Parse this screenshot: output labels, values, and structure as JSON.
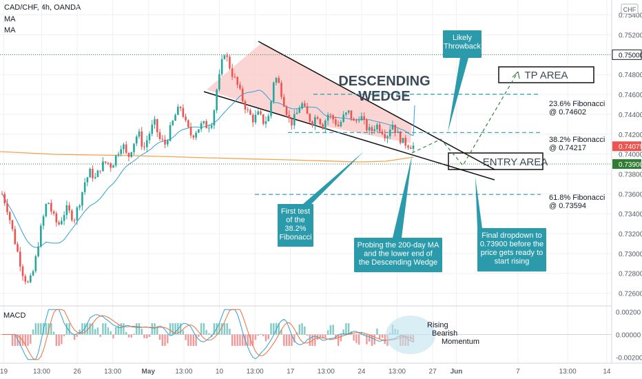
{
  "header": {
    "symbol": "CAD/CHF, 4h, OANDA",
    "indicators": [
      "MA",
      "MA"
    ],
    "currency": "CHF"
  },
  "chart_data": {
    "type": "candlestick",
    "title": "CAD/CHF, 4h, OANDA",
    "price_axis": {
      "ticks": [
        "0.75400",
        "0.75200",
        "0.75000",
        "0.74800",
        "0.74600",
        "0.74400",
        "0.74200",
        "0.74000",
        "0.73800",
        "0.73600",
        "0.73400",
        "0.73200",
        "0.73000",
        "0.72800",
        "0.72600"
      ],
      "range": [
        0.725,
        0.7555
      ],
      "current_price": "0.74079",
      "level_price": "0.73900",
      "marked_level": "0.75000"
    },
    "time_axis": {
      "ticks": [
        "19",
        "13:00",
        "26",
        "13:00",
        "May",
        "13:00",
        "10",
        "13:00",
        "17",
        "13:00",
        "24",
        "13:00",
        "27",
        "Jun",
        "7",
        "13:00",
        "14"
      ],
      "bar_positions": [
        2,
        34,
        64,
        94,
        124,
        154,
        184,
        214,
        244,
        274,
        304,
        334,
        364,
        384,
        436,
        478,
        511
      ]
    },
    "candles": [],
    "annotations": {
      "pattern_title": [
        "DESCENDING",
        "WEDGE"
      ],
      "likely_throwback": [
        "Likely",
        "Throwback"
      ],
      "tp_area": "TP AREA",
      "entry_area": "ENTRY AREA",
      "fib_236": [
        "23.6% Fibonacci",
        "@ 0.74602"
      ],
      "fib_382": [
        "38.2% Fibonacci",
        "@ 0.74217"
      ],
      "fib_618": [
        "61.8% Fibonacci",
        "@ 0.73594"
      ],
      "first_test": [
        "First test",
        "of the",
        "38.2%",
        "Fibonacci"
      ],
      "probing": [
        "Probing the 200-day MA",
        "and the lower end of",
        "the Descending Wedge"
      ],
      "final_dropdown": [
        "Final dropdown to",
        "0.73900 before the",
        "price gets ready to",
        "start rising"
      ],
      "rising_macd": [
        "Rising",
        "Bearish",
        "Momentum"
      ]
    },
    "macd": {
      "label": "MACD",
      "ticks": [
        "0.00200",
        "0.00000",
        "-0.00200"
      ],
      "range": [
        -0.0024,
        0.0024
      ]
    },
    "colors": {
      "bull": "#26a69a",
      "bear": "#ef5350",
      "ma_fast": "#2e9fd6",
      "ma_slow": "#f7a24a",
      "callout": "#2b9bab",
      "wedge_fill": "#f9c7c6",
      "dash": "#2b9bab"
    }
  }
}
